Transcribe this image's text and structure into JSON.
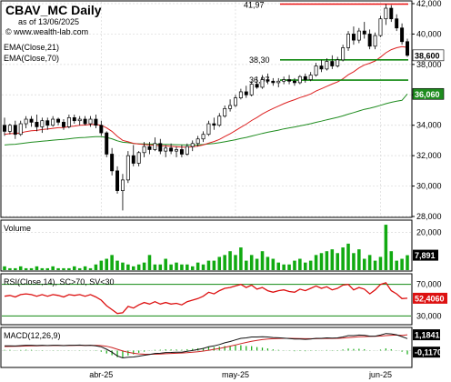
{
  "header": {
    "title": "CBAV_MC Daily",
    "asof": "as of 13/06/2025",
    "site": "© www.wealth-lab.com"
  },
  "legend": {
    "ema21": "EMA(Close,21)",
    "ema70": "EMA(Close,70)"
  },
  "colors": {
    "ema21": "#dd2020",
    "ema70": "#1f8c1f",
    "level_red": "#ee1111",
    "level_green": "#118811",
    "volume": "#11aa11",
    "rsi": "#dd1111",
    "macd": "#111111",
    "macd_signal": "#cc2222",
    "macd_hist": "#11aa11",
    "grid": "#d8d8d8"
  },
  "chart_data": [
    {
      "type": "candlestick",
      "panel": "price",
      "ylim": [
        28000,
        42000
      ],
      "y_ticks": [
        "42,000",
        "40,000",
        "38,000",
        "36,000",
        "34,000",
        "32,000",
        "30,000",
        "28,000"
      ],
      "y_tick_values": [
        42000,
        40000,
        38000,
        36000,
        34000,
        32000,
        30000,
        28000
      ],
      "x_ticks": [
        "abr-25",
        "may-25",
        "jun-25"
      ],
      "x_tick_index": [
        18,
        43,
        70
      ],
      "grid": true,
      "last_labels": {
        "close": "38,600",
        "ema70": "36,060"
      },
      "last_values": {
        "close": 38600,
        "ema70": 36060
      },
      "levels": [
        {
          "label": "41,97",
          "value": 41970,
          "kind": "resistance"
        },
        {
          "label": "38,30",
          "value": 38300,
          "kind": "support"
        },
        {
          "label": "36,97",
          "value": 36970,
          "kind": "support"
        }
      ],
      "ohlc": [
        [
          34000,
          34500,
          33300,
          33600
        ],
        [
          33600,
          34100,
          33400,
          34000
        ],
        [
          34000,
          34300,
          33100,
          33400
        ],
        [
          33400,
          34300,
          33300,
          34100
        ],
        [
          34100,
          34600,
          33800,
          34400
        ],
        [
          34400,
          34600,
          33900,
          34200
        ],
        [
          34200,
          34700,
          33600,
          33900
        ],
        [
          33900,
          34500,
          33500,
          34300
        ],
        [
          34300,
          34500,
          33700,
          34000
        ],
        [
          34000,
          34600,
          33900,
          34400
        ],
        [
          34400,
          34500,
          34000,
          34200
        ],
        [
          34200,
          34400,
          33700,
          33900
        ],
        [
          33900,
          34700,
          33800,
          34500
        ],
        [
          34500,
          34700,
          34100,
          34300
        ],
        [
          34300,
          34600,
          34000,
          34400
        ],
        [
          34400,
          34600,
          34000,
          34100
        ],
        [
          34100,
          34600,
          33900,
          34400
        ],
        [
          34400,
          34700,
          33800,
          34000
        ],
        [
          34000,
          34300,
          33300,
          33500
        ],
        [
          33500,
          33600,
          31900,
          32100
        ],
        [
          32100,
          32500,
          30700,
          31000
        ],
        [
          31000,
          31300,
          29500,
          29700
        ],
        [
          29700,
          30800,
          28400,
          30400
        ],
        [
          30400,
          32300,
          30200,
          32000
        ],
        [
          32000,
          32700,
          31300,
          31500
        ],
        [
          31500,
          32300,
          31300,
          32200
        ],
        [
          32200,
          32900,
          31900,
          32600
        ],
        [
          32600,
          32900,
          32100,
          32400
        ],
        [
          32400,
          33200,
          32300,
          32800
        ],
        [
          32800,
          33100,
          32100,
          32300
        ],
        [
          32300,
          32700,
          31900,
          32500
        ],
        [
          32500,
          32800,
          32100,
          32300
        ],
        [
          32300,
          32600,
          31900,
          32400
        ],
        [
          32400,
          32700,
          31900,
          32100
        ],
        [
          32100,
          32800,
          32000,
          32600
        ],
        [
          32600,
          33000,
          32300,
          32800
        ],
        [
          32800,
          33300,
          32600,
          33100
        ],
        [
          33100,
          33600,
          32900,
          33400
        ],
        [
          33400,
          34300,
          33300,
          34100
        ],
        [
          34100,
          34500,
          33700,
          34000
        ],
        [
          34000,
          34800,
          33900,
          34600
        ],
        [
          34600,
          35300,
          34500,
          35100
        ],
        [
          35100,
          35700,
          34900,
          35300
        ],
        [
          35300,
          36000,
          35200,
          35800
        ],
        [
          35800,
          36400,
          35700,
          36200
        ],
        [
          36200,
          36600,
          35800,
          36000
        ],
        [
          36000,
          36900,
          35900,
          36700
        ],
        [
          36700,
          37200,
          36400,
          36500
        ],
        [
          36500,
          37300,
          36400,
          37000
        ],
        [
          37000,
          37400,
          36700,
          36900
        ],
        [
          36900,
          37100,
          36600,
          36800
        ],
        [
          36800,
          37100,
          36500,
          36900
        ],
        [
          36900,
          37200,
          36700,
          37000
        ],
        [
          37000,
          37300,
          36700,
          36900
        ],
        [
          36900,
          37100,
          36600,
          36800
        ],
        [
          36800,
          37300,
          36700,
          37200
        ],
        [
          37200,
          37400,
          36800,
          37000
        ],
        [
          37000,
          37500,
          36900,
          37300
        ],
        [
          37300,
          38100,
          37200,
          37900
        ],
        [
          37900,
          38300,
          37500,
          37700
        ],
        [
          37700,
          38400,
          37600,
          38200
        ],
        [
          38200,
          38600,
          37700,
          37900
        ],
        [
          37900,
          38500,
          37800,
          38300
        ],
        [
          38300,
          39300,
          38200,
          39100
        ],
        [
          39100,
          40200,
          38900,
          40000
        ],
        [
          40000,
          40500,
          39300,
          39600
        ],
        [
          39600,
          40400,
          39400,
          40200
        ],
        [
          40200,
          40800,
          39700,
          40000
        ],
        [
          40000,
          40300,
          39000,
          39200
        ],
        [
          39200,
          40100,
          39000,
          39900
        ],
        [
          39900,
          41200,
          39800,
          41000
        ],
        [
          41000,
          41970,
          40600,
          41700
        ],
        [
          41700,
          41900,
          40800,
          41000
        ],
        [
          41000,
          41300,
          40200,
          40400
        ],
        [
          40400,
          40700,
          39300,
          39500
        ],
        [
          39500,
          39700,
          38500,
          38600
        ]
      ],
      "ema21": [
        33400,
        33450,
        33460,
        33500,
        33580,
        33640,
        33660,
        33720,
        33750,
        33800,
        33840,
        33850,
        33910,
        33950,
        34000,
        34010,
        34050,
        34050,
        34000,
        33830,
        33600,
        33270,
        33010,
        32910,
        32810,
        32760,
        32730,
        32700,
        32690,
        32650,
        32640,
        32610,
        32590,
        32560,
        32560,
        32580,
        32630,
        32700,
        32830,
        32930,
        33070,
        33260,
        33440,
        33650,
        33870,
        34070,
        34310,
        34510,
        34740,
        34930,
        35100,
        35260,
        35420,
        35560,
        35680,
        35820,
        35930,
        36060,
        36250,
        36400,
        36560,
        36710,
        36850,
        37050,
        37320,
        37520,
        37770,
        37970,
        38080,
        38230,
        38480,
        38770,
        38970,
        39100,
        39170,
        39120
      ],
      "ema70": [
        32700,
        32730,
        32750,
        32790,
        32840,
        32880,
        32910,
        32950,
        32980,
        33020,
        33050,
        33070,
        33110,
        33150,
        33180,
        33200,
        33230,
        33250,
        33250,
        33200,
        33110,
        32980,
        32880,
        32850,
        32800,
        32780,
        32770,
        32760,
        32760,
        32740,
        32740,
        32730,
        32720,
        32710,
        32700,
        32700,
        32710,
        32730,
        32770,
        32800,
        32850,
        32910,
        32980,
        33050,
        33130,
        33200,
        33290,
        33370,
        33460,
        33540,
        33610,
        33680,
        33760,
        33830,
        33890,
        33960,
        34030,
        34100,
        34190,
        34270,
        34360,
        34440,
        34520,
        34620,
        34730,
        34830,
        34940,
        35050,
        35120,
        35210,
        35310,
        35420,
        35510,
        35580,
        35640,
        36060
      ]
    },
    {
      "type": "bar",
      "panel": "volume",
      "title": "Volume",
      "ylim": [
        0,
        25
      ],
      "y_ticks": [
        "20,000"
      ],
      "y_tick_values": [
        20
      ],
      "last_label": "7,891",
      "values": [
        2,
        1,
        1,
        2,
        1,
        1,
        2,
        1,
        1,
        2,
        1,
        1,
        1,
        2,
        1,
        2,
        1,
        3,
        5,
        6,
        8,
        5,
        4,
        3,
        2,
        3,
        4,
        8,
        3,
        3,
        6,
        3,
        4,
        3,
        3,
        2,
        4,
        3,
        5,
        5,
        7,
        8,
        10,
        8,
        12,
        5,
        8,
        6,
        10,
        7,
        6,
        4,
        3,
        3,
        5,
        6,
        4,
        5,
        8,
        9,
        10,
        11,
        9,
        12,
        14,
        9,
        11,
        6,
        8,
        5,
        7,
        24,
        10,
        5,
        6,
        7.891
      ]
    },
    {
      "type": "line",
      "panel": "rsi",
      "title": "RSI(Close,14), SC>70, SV<30",
      "ylim": [
        20,
        80
      ],
      "y_ticks": [
        "70,000",
        "30,000"
      ],
      "y_tick_values": [
        70,
        30
      ],
      "last_label": "52,4060",
      "values": [
        55,
        56,
        54,
        57,
        58,
        57,
        55,
        57,
        55,
        57,
        56,
        54,
        57,
        56,
        57,
        55,
        57,
        54,
        50,
        43,
        38,
        33,
        34,
        42,
        40,
        44,
        47,
        45,
        48,
        45,
        47,
        45,
        46,
        44,
        48,
        50,
        52,
        55,
        60,
        58,
        62,
        65,
        66,
        68,
        70,
        66,
        69,
        64,
        66,
        62,
        60,
        62,
        63,
        61,
        60,
        64,
        62,
        65,
        68,
        65,
        67,
        63,
        65,
        69,
        70,
        63,
        66,
        64,
        58,
        63,
        70,
        72,
        62,
        58,
        52,
        52.406
      ]
    },
    {
      "type": "line",
      "panel": "macd",
      "title": "MACD(12,26,9)",
      "ylim": [
        -1.2,
        1.6
      ],
      "y_ticks": [
        "1,1841",
        "-0,1170"
      ],
      "y_tick_values": [
        1.1841,
        -0.117
      ],
      "macd": [
        0.35,
        0.36,
        0.34,
        0.37,
        0.4,
        0.4,
        0.38,
        0.4,
        0.38,
        0.4,
        0.4,
        0.37,
        0.4,
        0.4,
        0.41,
        0.38,
        0.4,
        0.36,
        0.28,
        0.1,
        -0.12,
        -0.4,
        -0.55,
        -0.5,
        -0.48,
        -0.42,
        -0.35,
        -0.3,
        -0.22,
        -0.2,
        -0.15,
        -0.14,
        -0.12,
        -0.12,
        -0.06,
        0.0,
        0.08,
        0.16,
        0.28,
        0.35,
        0.45,
        0.58,
        0.68,
        0.8,
        0.92,
        0.95,
        1.02,
        1.02,
        1.04,
        1.02,
        0.98,
        0.96,
        0.94,
        0.9,
        0.86,
        0.86,
        0.84,
        0.86,
        0.92,
        0.92,
        0.95,
        0.94,
        0.95,
        1.02,
        1.12,
        1.12,
        1.16,
        1.15,
        1.08,
        1.08,
        1.16,
        1.28,
        1.25,
        1.18,
        1.05,
        0.9
      ],
      "signal": [
        0.3,
        0.31,
        0.32,
        0.33,
        0.34,
        0.35,
        0.36,
        0.37,
        0.37,
        0.38,
        0.38,
        0.38,
        0.38,
        0.39,
        0.39,
        0.39,
        0.39,
        0.39,
        0.37,
        0.32,
        0.23,
        0.1,
        -0.03,
        -0.13,
        -0.2,
        -0.25,
        -0.27,
        -0.28,
        -0.27,
        -0.26,
        -0.24,
        -0.22,
        -0.2,
        -0.18,
        -0.16,
        -0.13,
        -0.09,
        -0.04,
        0.02,
        0.09,
        0.16,
        0.24,
        0.33,
        0.42,
        0.52,
        0.61,
        0.69,
        0.76,
        0.82,
        0.86,
        0.89,
        0.91,
        0.92,
        0.92,
        0.91,
        0.9,
        0.89,
        0.89,
        0.89,
        0.9,
        0.91,
        0.91,
        0.92,
        0.94,
        0.97,
        1.0,
        1.03,
        1.05,
        1.06,
        1.07,
        1.09,
        1.12,
        1.15,
        1.16,
        1.14,
        1.1841
      ]
    }
  ]
}
